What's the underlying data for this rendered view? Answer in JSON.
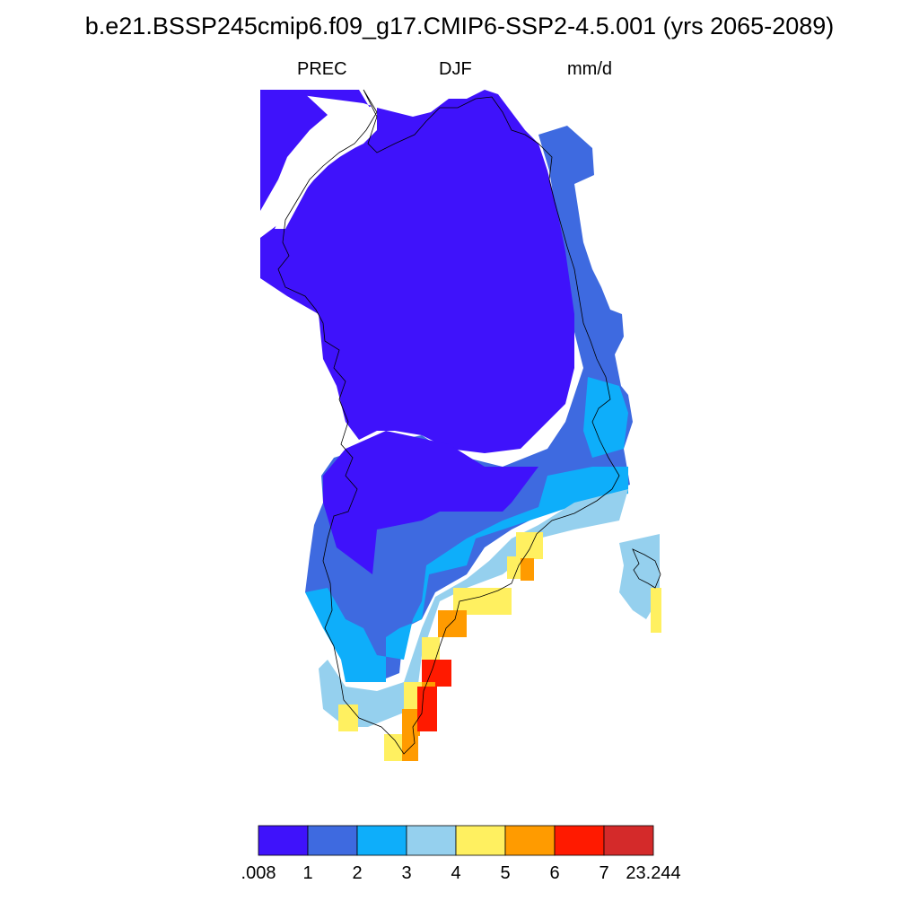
{
  "figure": {
    "title": "b.e21.BSSP245cmip6.f09_g17.CMIP6-SSP2-4.5.001 (yrs 2065-2089)",
    "variable": "PREC",
    "season": "DJF",
    "units": "mm/d"
  },
  "legend": {
    "colors": [
      "#3f12fb",
      "#3e6ae0",
      "#0eaefa",
      "#95d0ee",
      "#fff060",
      "#ff9b00",
      "#ff1a00",
      "#d42a2a"
    ],
    "labels": [
      ".008",
      "1",
      "2",
      "3",
      "4",
      "5",
      "6",
      "7",
      "23.244"
    ]
  },
  "map": {
    "region": "Greenland",
    "land_color": "#3f12fb",
    "coastline_color": "#000000"
  }
}
